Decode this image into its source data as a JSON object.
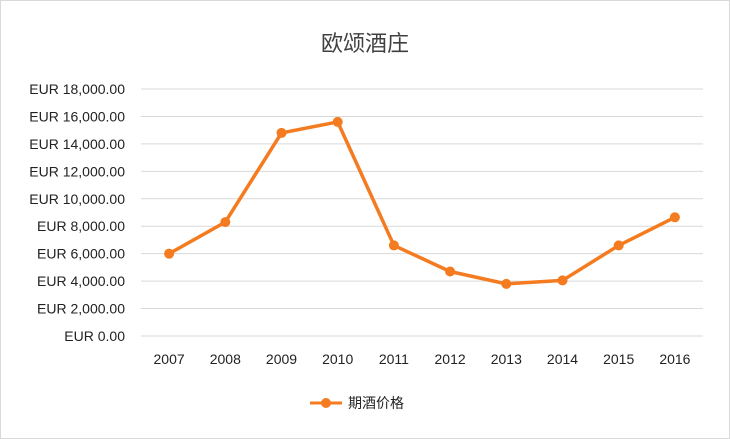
{
  "chart_data": {
    "type": "line",
    "title": "欧颂酒庄",
    "xlabel": "",
    "ylabel": "",
    "categories": [
      "2007",
      "2008",
      "2009",
      "2010",
      "2011",
      "2012",
      "2013",
      "2014",
      "2015",
      "2016"
    ],
    "series": [
      {
        "name": "期酒价格",
        "color": "#F47B20",
        "values": [
          6000,
          8300,
          14800,
          15600,
          6600,
          4700,
          3800,
          4050,
          6600,
          8650
        ]
      }
    ],
    "ylim": [
      0,
      18000
    ],
    "y_ticks": [
      {
        "value": 0,
        "label": "EUR 0.00"
      },
      {
        "value": 2000,
        "label": "EUR 2,000.00"
      },
      {
        "value": 4000,
        "label": "EUR 4,000.00"
      },
      {
        "value": 6000,
        "label": "EUR 6,000.00"
      },
      {
        "value": 8000,
        "label": "EUR 8,000.00"
      },
      {
        "value": 10000,
        "label": "EUR 10,000.00"
      },
      {
        "value": 12000,
        "label": "EUR 12,000.00"
      },
      {
        "value": 14000,
        "label": "EUR 14,000.00"
      },
      {
        "value": 16000,
        "label": "EUR 16,000.00"
      },
      {
        "value": 18000,
        "label": "EUR 18,000.00"
      }
    ],
    "grid": true,
    "legend_position": "bottom",
    "marker": "circle"
  }
}
